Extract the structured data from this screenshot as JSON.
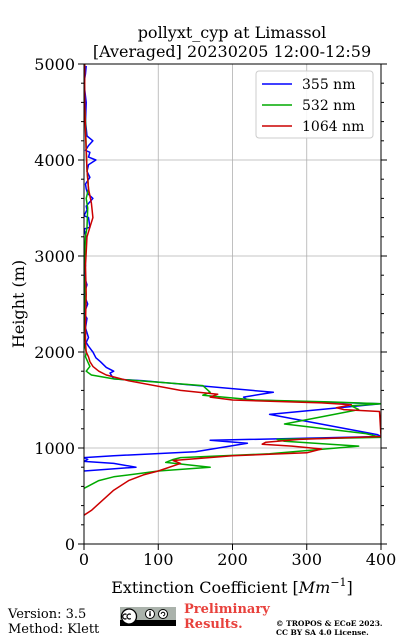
{
  "chart_data": {
    "type": "line",
    "title": "pollyxt_cyp at Limassol",
    "subtitle": "[Averaged] 20230205 12:00-12:59",
    "xlabel": "Extinction Coefficient [",
    "xlabel_unit": "Mm",
    "xlabel_exp": "−1",
    "xlabel_close": "]",
    "ylabel": "Height (m)",
    "xlim": [
      0,
      400
    ],
    "ylim": [
      0,
      5000
    ],
    "xticks": [
      0,
      100,
      200,
      300,
      400
    ],
    "yticks": [
      0,
      1000,
      2000,
      3000,
      4000,
      5000
    ],
    "xtick_labels": [
      "0",
      "100",
      "200",
      "300",
      "400"
    ],
    "ytick_labels": [
      "0",
      "1000",
      "2000",
      "3000",
      "4000",
      "5000"
    ],
    "grid": true,
    "legend_position": "top-right",
    "series": [
      {
        "name": "355 nm",
        "color": "#0000ff",
        "points": [
          [
            0,
            760
          ],
          [
            70,
            800
          ],
          [
            40,
            840
          ],
          [
            0,
            860
          ],
          [
            5,
            880
          ],
          [
            0,
            900
          ],
          [
            40,
            920
          ],
          [
            150,
            960
          ],
          [
            220,
            1050
          ],
          [
            170,
            1080
          ],
          [
            400,
            1120
          ],
          [
            395,
            1140
          ],
          [
            250,
            1350
          ],
          [
            400,
            1460
          ],
          [
            220,
            1500
          ],
          [
            215,
            1530
          ],
          [
            255,
            1580
          ],
          [
            80,
            1700
          ],
          [
            40,
            1720
          ],
          [
            35,
            1780
          ],
          [
            40,
            1800
          ],
          [
            30,
            1840
          ],
          [
            22,
            1900
          ],
          [
            16,
            1940
          ],
          [
            12,
            2000
          ],
          [
            10,
            2020
          ],
          [
            6,
            2060
          ],
          [
            3,
            2100
          ],
          [
            6,
            2150
          ],
          [
            2,
            2250
          ],
          [
            4,
            2350
          ],
          [
            0,
            2400
          ],
          [
            5,
            2500
          ],
          [
            0,
            2600
          ],
          [
            4,
            2700
          ],
          [
            0,
            2800
          ],
          [
            2,
            2900
          ],
          [
            0,
            3000
          ],
          [
            1,
            3100
          ],
          [
            3,
            3200
          ],
          [
            0,
            3280
          ],
          [
            8,
            3300
          ],
          [
            6,
            3400
          ],
          [
            0,
            3420
          ],
          [
            4,
            3480
          ],
          [
            3,
            3520
          ],
          [
            12,
            3600
          ],
          [
            5,
            3650
          ],
          [
            3,
            3700
          ],
          [
            2,
            3750
          ],
          [
            8,
            3820
          ],
          [
            4,
            3880
          ],
          [
            6,
            3950
          ],
          [
            12,
            3980
          ],
          [
            16,
            4000
          ],
          [
            6,
            4030
          ],
          [
            8,
            4080
          ],
          [
            2,
            4100
          ],
          [
            6,
            4150
          ],
          [
            12,
            4200
          ],
          [
            4,
            4250
          ],
          [
            2,
            4400
          ],
          [
            3,
            4600
          ],
          [
            0,
            4800
          ],
          [
            2,
            4900
          ],
          [
            3,
            4980
          ]
        ]
      },
      {
        "name": "532 nm",
        "color": "#00aa00",
        "points": [
          [
            0,
            580
          ],
          [
            5,
            600
          ],
          [
            20,
            660
          ],
          [
            40,
            700
          ],
          [
            80,
            740
          ],
          [
            100,
            760
          ],
          [
            170,
            800
          ],
          [
            110,
            850
          ],
          [
            120,
            880
          ],
          [
            130,
            900
          ],
          [
            250,
            940
          ],
          [
            370,
            1020
          ],
          [
            270,
            1070
          ],
          [
            260,
            1090
          ],
          [
            400,
            1110
          ],
          [
            380,
            1150
          ],
          [
            270,
            1250
          ],
          [
            370,
            1400
          ],
          [
            360,
            1440
          ],
          [
            400,
            1460
          ],
          [
            330,
            1480
          ],
          [
            230,
            1500
          ],
          [
            160,
            1550
          ],
          [
            170,
            1580
          ],
          [
            160,
            1650
          ],
          [
            110,
            1680
          ],
          [
            40,
            1720
          ],
          [
            10,
            1760
          ],
          [
            3,
            1800
          ],
          [
            8,
            1850
          ],
          [
            6,
            1880
          ],
          [
            2,
            1950
          ],
          [
            3,
            2000
          ],
          [
            0,
            2100
          ],
          [
            2,
            2200
          ],
          [
            0,
            2400
          ],
          [
            2,
            2600
          ],
          [
            0,
            2800
          ],
          [
            1,
            3000
          ],
          [
            2,
            3200
          ],
          [
            4,
            3300
          ],
          [
            5,
            3500
          ],
          [
            3,
            3600
          ],
          [
            6,
            3700
          ],
          [
            4,
            3900
          ],
          [
            3,
            4100
          ],
          [
            2,
            4400
          ],
          [
            0,
            4700
          ],
          [
            1,
            5000
          ]
        ]
      },
      {
        "name": "1064 nm",
        "color": "#cc0000",
        "points": [
          [
            0,
            300
          ],
          [
            10,
            350
          ],
          [
            20,
            420
          ],
          [
            40,
            560
          ],
          [
            60,
            660
          ],
          [
            80,
            720
          ],
          [
            100,
            760
          ],
          [
            130,
            840
          ],
          [
            120,
            870
          ],
          [
            200,
            920
          ],
          [
            300,
            950
          ],
          [
            320,
            990
          ],
          [
            280,
            1020
          ],
          [
            240,
            1040
          ],
          [
            245,
            1060
          ],
          [
            290,
            1090
          ],
          [
            400,
            1120
          ],
          [
            398,
            1380
          ],
          [
            350,
            1400
          ],
          [
            340,
            1420
          ],
          [
            360,
            1450
          ],
          [
            320,
            1470
          ],
          [
            200,
            1500
          ],
          [
            170,
            1530
          ],
          [
            180,
            1560
          ],
          [
            130,
            1600
          ],
          [
            60,
            1700
          ],
          [
            30,
            1760
          ],
          [
            20,
            1800
          ],
          [
            12,
            1850
          ],
          [
            8,
            1900
          ],
          [
            6,
            1950
          ],
          [
            3,
            2000
          ],
          [
            2,
            2100
          ],
          [
            2,
            2300
          ],
          [
            3,
            2600
          ],
          [
            2,
            2900
          ],
          [
            4,
            3200
          ],
          [
            8,
            3300
          ],
          [
            12,
            3400
          ],
          [
            10,
            3550
          ],
          [
            6,
            3700
          ],
          [
            4,
            3900
          ],
          [
            3,
            4100
          ],
          [
            2,
            4300
          ],
          [
            1,
            4600
          ],
          [
            1,
            5000
          ]
        ]
      }
    ]
  },
  "footer": {
    "version": "Version: 3.5",
    "method": "Method: Klett",
    "badge_icon": "cc-by-sa-badge-icon",
    "preliminary_line1": "Preliminary",
    "preliminary_line2": "Results.",
    "copyright_line1": "© TROPOS & ECoE 2023.",
    "copyright_line2": "CC BY SA 4.0 License."
  }
}
